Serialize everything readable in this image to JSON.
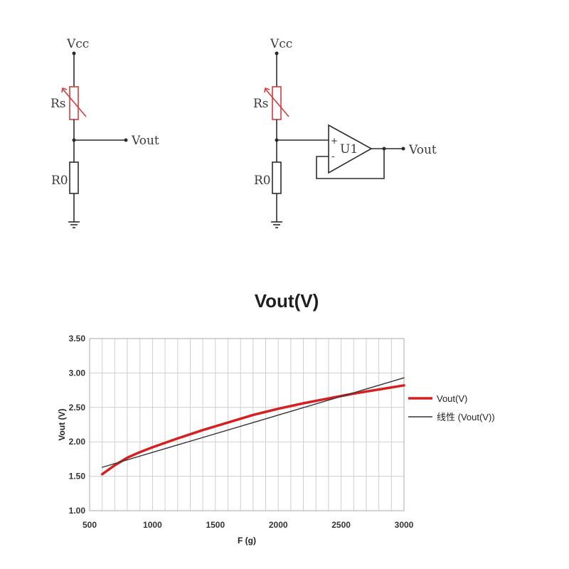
{
  "circuit_left": {
    "vcc_label": "Vcc",
    "rs_label": "Rs",
    "r0_label": "R0",
    "vout_label": "Vout"
  },
  "circuit_right": {
    "vcc_label": "Vcc",
    "rs_label": "Rs",
    "r0_label": "R0",
    "vout_label": "Vout",
    "opamp_label": "U1",
    "plus_label": "+",
    "minus_label": "-"
  },
  "chart_data": {
    "type": "line",
    "title": "Vout(V)",
    "xlabel": "F (g)",
    "ylabel": "Vout (V)",
    "xlim": [
      500,
      3000
    ],
    "ylim": [
      1.0,
      3.5
    ],
    "x_ticks": [
      500,
      1000,
      1500,
      2000,
      2500,
      3000
    ],
    "x_tick_labels": [
      "500",
      "1000",
      "1500",
      "2000",
      "2500",
      "3000"
    ],
    "y_ticks": [
      1.0,
      1.5,
      2.0,
      2.5,
      3.0,
      3.5
    ],
    "y_tick_labels": [
      "1.00",
      "1.50",
      "2.00",
      "2.50",
      "3.00",
      "3.50"
    ],
    "grid": true,
    "legend_position": "right",
    "series": [
      {
        "name": "Vout(V)",
        "color": "#d62020",
        "x": [
          600,
          700,
          800,
          900,
          1000,
          1200,
          1400,
          1600,
          1800,
          2000,
          2200,
          2400,
          2600,
          2800,
          3000
        ],
        "y": [
          1.53,
          1.66,
          1.77,
          1.85,
          1.92,
          2.05,
          2.17,
          2.28,
          2.39,
          2.48,
          2.56,
          2.63,
          2.7,
          2.76,
          2.82
        ]
      },
      {
        "name": "线性 (Vout(V))",
        "color": "#333333",
        "x": [
          600,
          3000
        ],
        "y": [
          1.63,
          2.93
        ]
      }
    ]
  }
}
